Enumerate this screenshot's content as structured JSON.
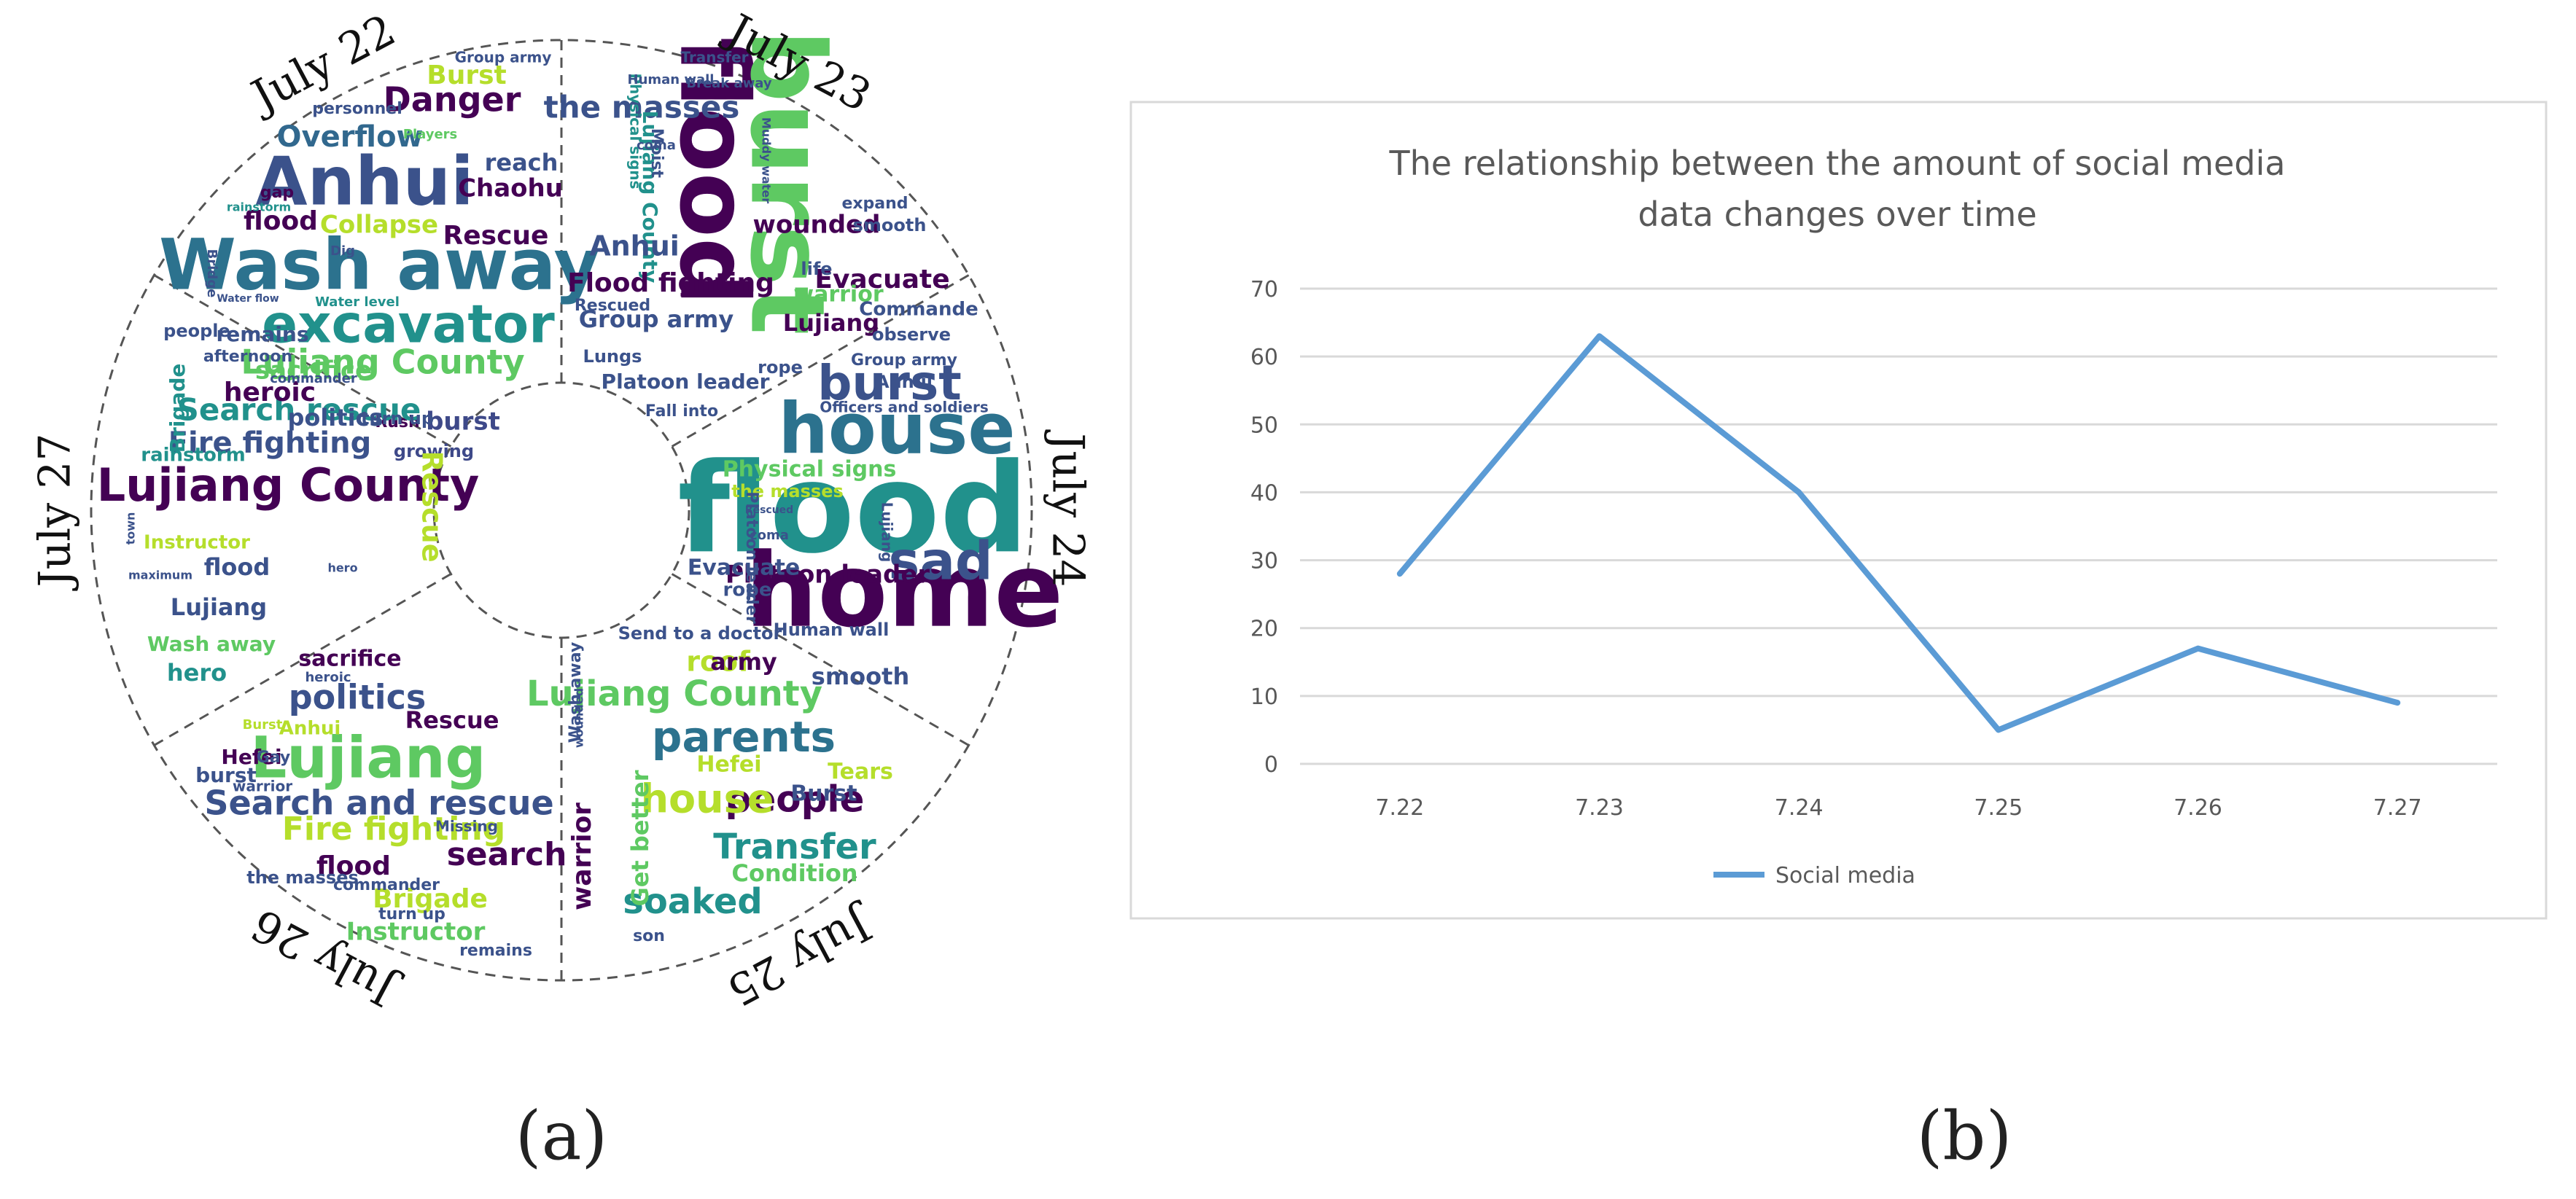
{
  "panel_a": {
    "label": "(a)",
    "day_labels": [
      "July 22",
      "July 23",
      "July 24",
      "July 25",
      "July 26",
      "July 27"
    ],
    "words": [
      {
        "text": "Wash away",
        "color": "#2c728e"
      },
      {
        "text": "Anhui",
        "color": "#3b528b"
      },
      {
        "text": "excavator",
        "color": "#21918c"
      },
      {
        "text": "Lujiang County",
        "color": "#5ec962"
      },
      {
        "text": "Danger",
        "color": "#440154"
      },
      {
        "text": "Burst",
        "color": "#b5de2b"
      },
      {
        "text": "Overflow",
        "color": "#31688e"
      },
      {
        "text": "Collapse",
        "color": "#b5de2b"
      },
      {
        "text": "Rescue",
        "color": "#440154"
      },
      {
        "text": "flood",
        "color": "#440154"
      },
      {
        "text": "Chaohu",
        "color": "#440154"
      },
      {
        "text": "reach",
        "color": "#3b528b"
      },
      {
        "text": "burst",
        "color": "#3e4989"
      },
      {
        "text": "growing",
        "color": "#3e4989"
      },
      {
        "text": "Rush",
        "color": "#440154"
      },
      {
        "text": "personnel",
        "color": "#3b528b"
      },
      {
        "text": "Players",
        "color": "#5ec962"
      },
      {
        "text": "gap",
        "color": "#440154"
      },
      {
        "text": "rainstorm",
        "color": "#21918c"
      },
      {
        "text": "Dig",
        "color": "#3b528b"
      },
      {
        "text": "Bridge",
        "color": "#3b528b"
      },
      {
        "text": "Water flow",
        "color": "#3b528b"
      },
      {
        "text": "Water level",
        "color": "#21918c"
      },
      {
        "text": "Group army",
        "color": "#3b528b"
      },
      {
        "text": "flood",
        "color": "#440154"
      },
      {
        "text": "burst",
        "color": "#5ec962"
      },
      {
        "text": "the masses",
        "color": "#3b528b"
      },
      {
        "text": "Lujiang County",
        "color": "#21918c"
      },
      {
        "text": "Anhui",
        "color": "#3b528b"
      },
      {
        "text": "Flood fighting",
        "color": "#440154"
      },
      {
        "text": "Group army",
        "color": "#3b528b"
      },
      {
        "text": "Lungs",
        "color": "#3b528b"
      },
      {
        "text": "Rescued",
        "color": "#3b528b"
      },
      {
        "text": "Platoon leader",
        "color": "#3b528b"
      },
      {
        "text": "Fall into",
        "color": "#3b528b"
      },
      {
        "text": "Evacuate",
        "color": "#440154"
      },
      {
        "text": "Lujiang",
        "color": "#440154"
      },
      {
        "text": "warrior",
        "color": "#5ec962"
      },
      {
        "text": "Commande",
        "color": "#3b528b"
      },
      {
        "text": "wounded",
        "color": "#440154"
      },
      {
        "text": "smooth",
        "color": "#3b528b"
      },
      {
        "text": "expand",
        "color": "#3b528b"
      },
      {
        "text": "life",
        "color": "#3b528b"
      },
      {
        "text": "rope",
        "color": "#3b528b"
      },
      {
        "text": "Moist",
        "color": "#3b528b"
      },
      {
        "text": "coma",
        "color": "#3b528b"
      },
      {
        "text": "Physical signs",
        "color": "#21918c"
      },
      {
        "text": "Human wall",
        "color": "#3b528b"
      },
      {
        "text": "Transfer",
        "color": "#3b528b"
      },
      {
        "text": "Muddy water",
        "color": "#3b528b"
      },
      {
        "text": "Break away",
        "color": "#3b528b"
      },
      {
        "text": "observe",
        "color": "#3b528b"
      },
      {
        "text": "Officers and soldiers",
        "color": "#3b528b"
      },
      {
        "text": "Group army",
        "color": "#3b528b"
      },
      {
        "text": "Anhui",
        "color": "#3b528b"
      },
      {
        "text": "flood",
        "color": "#21918c"
      },
      {
        "text": "home",
        "color": "#440154"
      },
      {
        "text": "house",
        "color": "#2c728e"
      },
      {
        "text": "burst",
        "color": "#3b528b"
      },
      {
        "text": "sad",
        "color": "#3b528b"
      },
      {
        "text": "Physical signs",
        "color": "#5ec962"
      },
      {
        "text": "the masses",
        "color": "#b5de2b"
      },
      {
        "text": "Platoon leader",
        "color": "#440154"
      },
      {
        "text": "Evacuate",
        "color": "#3b528b"
      },
      {
        "text": "rope",
        "color": "#3b528b"
      },
      {
        "text": "Human wall",
        "color": "#3b528b"
      },
      {
        "text": "coma",
        "color": "#3b528b"
      },
      {
        "text": "Rescued",
        "color": "#3b528b"
      },
      {
        "text": "Lujiang",
        "color": "#3b528b"
      },
      {
        "text": "Platoon leader",
        "color": "#3b528b"
      },
      {
        "text": "Lujiang County",
        "color": "#5ec962"
      },
      {
        "text": "parents",
        "color": "#2c728e"
      },
      {
        "text": "people",
        "color": "#440154"
      },
      {
        "text": "house",
        "color": "#b5de2b"
      },
      {
        "text": "Transfer",
        "color": "#21918c"
      },
      {
        "text": "soaked",
        "color": "#21918c"
      },
      {
        "text": "Condition",
        "color": "#5ec962"
      },
      {
        "text": "Hefei",
        "color": "#b5de2b"
      },
      {
        "text": "Tears",
        "color": "#b5de2b"
      },
      {
        "text": "Burst",
        "color": "#3b528b"
      },
      {
        "text": "smooth",
        "color": "#3b528b"
      },
      {
        "text": "roof",
        "color": "#b5de2b"
      },
      {
        "text": "army",
        "color": "#440154"
      },
      {
        "text": "Send to a doctor",
        "color": "#3b528b"
      },
      {
        "text": "warrior",
        "color": "#440154"
      },
      {
        "text": "Get better",
        "color": "#5ec962"
      },
      {
        "text": "son",
        "color": "#3b528b"
      },
      {
        "text": "Wash away",
        "color": "#3b528b"
      },
      {
        "text": "wounded",
        "color": "#3b528b"
      },
      {
        "text": "Lujiang",
        "color": "#5ec962"
      },
      {
        "text": "sacrifice",
        "color": "#440154"
      },
      {
        "text": "politics",
        "color": "#3b528b"
      },
      {
        "text": "Search and rescue",
        "color": "#3b528b"
      },
      {
        "text": "Fire fighting",
        "color": "#b5de2b"
      },
      {
        "text": "search",
        "color": "#440154"
      },
      {
        "text": "flood",
        "color": "#440154"
      },
      {
        "text": "Brigade",
        "color": "#b5de2b"
      },
      {
        "text": "Instructor",
        "color": "#5ec962"
      },
      {
        "text": "remains",
        "color": "#3b528b"
      },
      {
        "text": "the masses",
        "color": "#3b528b"
      },
      {
        "text": "commander",
        "color": "#3b528b"
      },
      {
        "text": "turn up",
        "color": "#3b528b"
      },
      {
        "text": "Missing",
        "color": "#3b528b"
      },
      {
        "text": "Rescue",
        "color": "#440154"
      },
      {
        "text": "Anhui",
        "color": "#b5de2b"
      },
      {
        "text": "burst",
        "color": "#3b528b"
      },
      {
        "text": "warrior",
        "color": "#3b528b"
      },
      {
        "text": "Hefei",
        "color": "#440154"
      },
      {
        "text": "Gay",
        "color": "#3b528b"
      },
      {
        "text": "Burst",
        "color": "#b5de2b"
      },
      {
        "text": "heroic",
        "color": "#3b528b"
      },
      {
        "text": "Lujiang County",
        "color": "#440154"
      },
      {
        "text": "Fire fighting",
        "color": "#3b528b"
      },
      {
        "text": "Search rescue",
        "color": "#21918c"
      },
      {
        "text": "sacrifice",
        "color": "#5ec962"
      },
      {
        "text": "heroic",
        "color": "#440154"
      },
      {
        "text": "politics",
        "color": "#3b528b"
      },
      {
        "text": "turn up",
        "color": "#3b528b"
      },
      {
        "text": "rainstorm",
        "color": "#21918c"
      },
      {
        "text": "Brigade",
        "color": "#21918c"
      },
      {
        "text": "remains",
        "color": "#3b528b"
      },
      {
        "text": "afternoon",
        "color": "#3b528b"
      },
      {
        "text": "people",
        "color": "#3b528b"
      },
      {
        "text": "commander",
        "color": "#3b528b"
      },
      {
        "text": "Rescue",
        "color": "#b5de2b"
      },
      {
        "text": "Instructor",
        "color": "#b5de2b"
      },
      {
        "text": "flood",
        "color": "#3b528b"
      },
      {
        "text": "Lujiang",
        "color": "#3b528b"
      },
      {
        "text": "Wash away",
        "color": "#5ec962"
      },
      {
        "text": "hero",
        "color": "#21918c"
      },
      {
        "text": "town",
        "color": "#3b528b"
      },
      {
        "text": "maximum",
        "color": "#3b528b"
      },
      {
        "text": "hero",
        "color": "#3b528b"
      }
    ]
  },
  "panel_b": {
    "label": "(b)"
  },
  "chart_data": {
    "type": "line",
    "title_lines": [
      "The relationship between the amount of social media",
      "data changes over time"
    ],
    "categories": [
      "7.22",
      "7.23",
      "7.24",
      "7.25",
      "7.26",
      "7.27"
    ],
    "series": [
      {
        "name": "Social media",
        "values": [
          28,
          63,
          40,
          5,
          17,
          9
        ],
        "color": "#5b9bd5"
      }
    ],
    "ylim": [
      0,
      70
    ],
    "yticks": [
      "0",
      "10",
      "20",
      "30",
      "40",
      "50",
      "60",
      "70"
    ],
    "grid": true,
    "legend": "bottom"
  }
}
